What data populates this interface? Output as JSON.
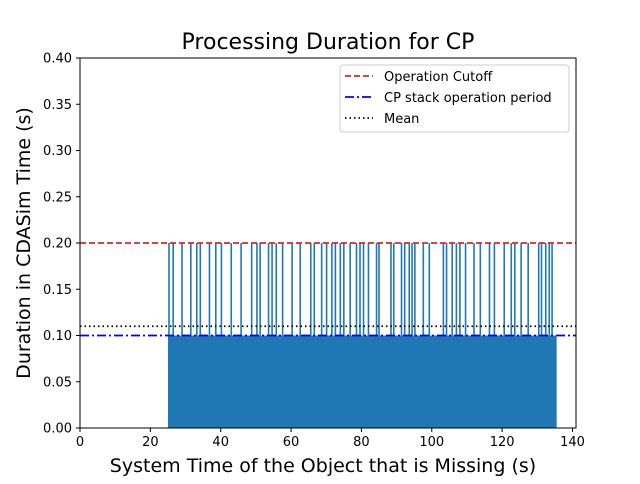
{
  "chart_data": {
    "type": "line",
    "title": "Processing Duration for CP",
    "xlabel": "System Time of the Object that is Missing (s)",
    "ylabel": "Duration in CDASim Time (s)",
    "xlim": [
      0,
      141
    ],
    "ylim": [
      0,
      0.4
    ],
    "xticks": [
      0,
      20,
      40,
      60,
      80,
      100,
      120,
      140
    ],
    "xtick_labels": [
      "0",
      "20",
      "40",
      "60",
      "80",
      "100",
      "120",
      "140"
    ],
    "yticks": [
      0,
      0.05,
      0.1,
      0.15,
      0.2,
      0.25,
      0.3,
      0.35,
      0.4
    ],
    "ytick_labels": [
      "0.00",
      "0.05",
      "0.10",
      "0.15",
      "0.20",
      "0.25",
      "0.30",
      "0.35",
      "0.40"
    ],
    "grid": false,
    "legend_position": "top-right",
    "series": [
      {
        "name": "",
        "color": "#1f77b4",
        "x_range": [
          25,
          135.5
        ],
        "base_value": 0.1,
        "spike_value": 0.2,
        "spike_x": [
          25.3,
          26.5,
          29.0,
          31.5,
          33.2,
          34.2,
          36.8,
          38.6,
          40.2,
          43.0,
          45.8,
          48.8,
          50.3,
          51.2,
          53.6,
          54.6,
          55.8,
          57.6,
          60.3,
          62.6,
          65.6,
          66.6,
          68.7,
          70.1,
          71.6,
          72.6,
          74.0,
          75.0,
          76.8,
          78.6,
          79.6,
          80.6,
          82.0,
          84.3,
          85.0,
          88.4,
          89.2,
          91.4,
          92.3,
          93.6,
          94.4,
          95.2,
          97.6,
          99.3,
          103.3,
          104.2,
          105.8,
          107.0,
          108.0,
          109.6,
          112.0,
          113.8,
          116.4,
          117.8,
          120.6,
          122.6,
          123.6,
          125.4,
          127.4,
          130.4,
          131.2,
          132.4,
          133.4,
          134.2
        ]
      },
      {
        "name": "Operation Cutoff",
        "color": "#d62728",
        "style": "dashed",
        "value": 0.2
      },
      {
        "name": "CP stack operation period",
        "color": "#0000ff",
        "style": "dashdot",
        "value": 0.1
      },
      {
        "name": "Mean",
        "color": "#000000",
        "style": "dotted",
        "value": 0.11
      }
    ]
  }
}
